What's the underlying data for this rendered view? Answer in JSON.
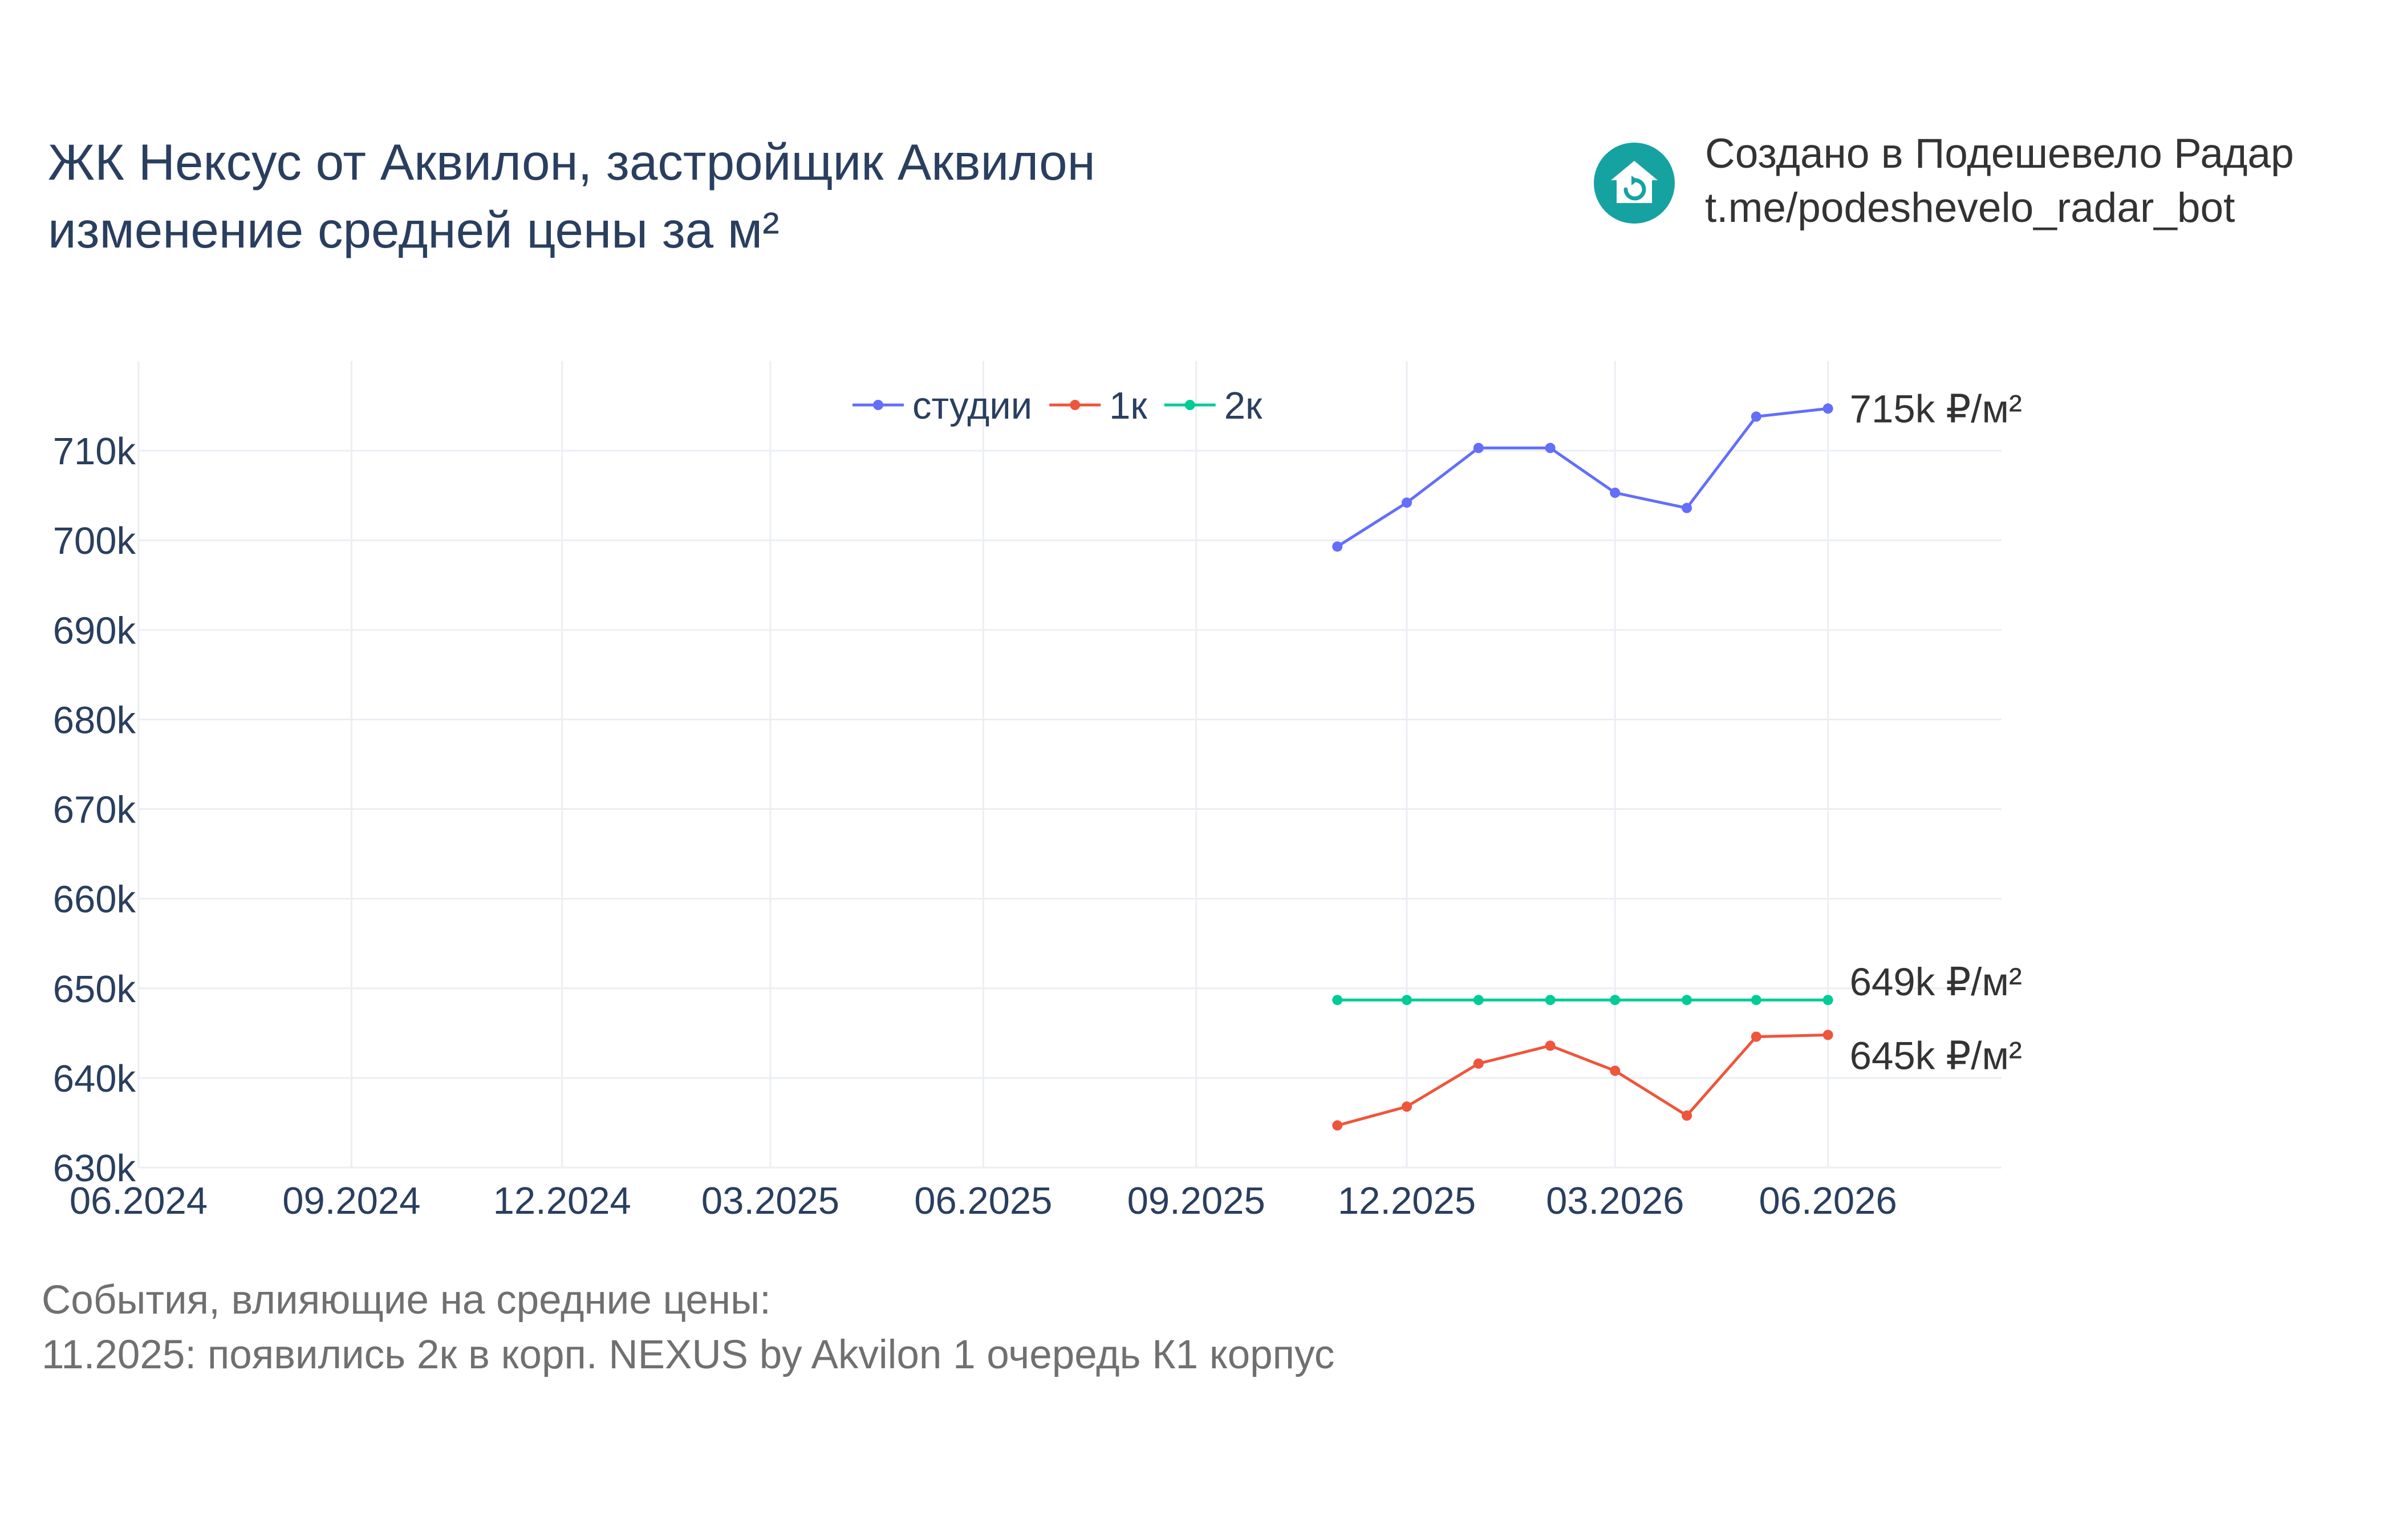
{
  "header": {
    "title_line1": "ЖК Нексус от Аквилон, застройщик Аквилон",
    "title_line2": "изменение средней цены за м²",
    "brand_icon": "house-refresh-icon",
    "brand_color": "#17a2a2",
    "credit_line1": "Создано в Подешевело Радар",
    "credit_line2": "t.me/podeshevelo_radar_bot"
  },
  "events": {
    "heading": "События, влияющие на средние цены:",
    "items": [
      "11.2025: появились 2к в корп. NEXUS by Akvilon 1 очередь К1 корпус"
    ]
  },
  "chart_data": {
    "type": "line",
    "x_ticks": [
      "06.2024",
      "09.2024",
      "12.2024",
      "03.2025",
      "06.2025",
      "09.2025",
      "12.2025",
      "03.2026",
      "06.2026"
    ],
    "y_ticks": [
      "630k",
      "640k",
      "650k",
      "660k",
      "670k",
      "680k",
      "690k",
      "700k",
      "710k"
    ],
    "xlim": [
      "2024-06-01",
      "2026-08-15"
    ],
    "ylim": [
      630000,
      720000
    ],
    "grid": true,
    "legend_position": "top-center",
    "x": [
      "2025-11-01",
      "2025-12-01",
      "2026-01-01",
      "2026-02-01",
      "2026-03-01",
      "2026-04-01",
      "2026-05-01",
      "2026-06-01"
    ],
    "series": [
      {
        "name": "студии",
        "color": "#636efa",
        "values": [
          699300,
          704200,
          710300,
          710300,
          705300,
          703600,
          713800,
          714700
        ],
        "end_label": "715k ₽/м²"
      },
      {
        "name": "1к",
        "color": "#ef553b",
        "values": [
          634700,
          636800,
          641600,
          643600,
          640800,
          635800,
          644600,
          644800
        ],
        "end_label": "645k ₽/м²"
      },
      {
        "name": "2к",
        "color": "#00cc96",
        "values": [
          648700,
          648700,
          648700,
          648700,
          648700,
          648700,
          648700,
          648700
        ],
        "end_label": "649k ₽/м²"
      }
    ]
  }
}
